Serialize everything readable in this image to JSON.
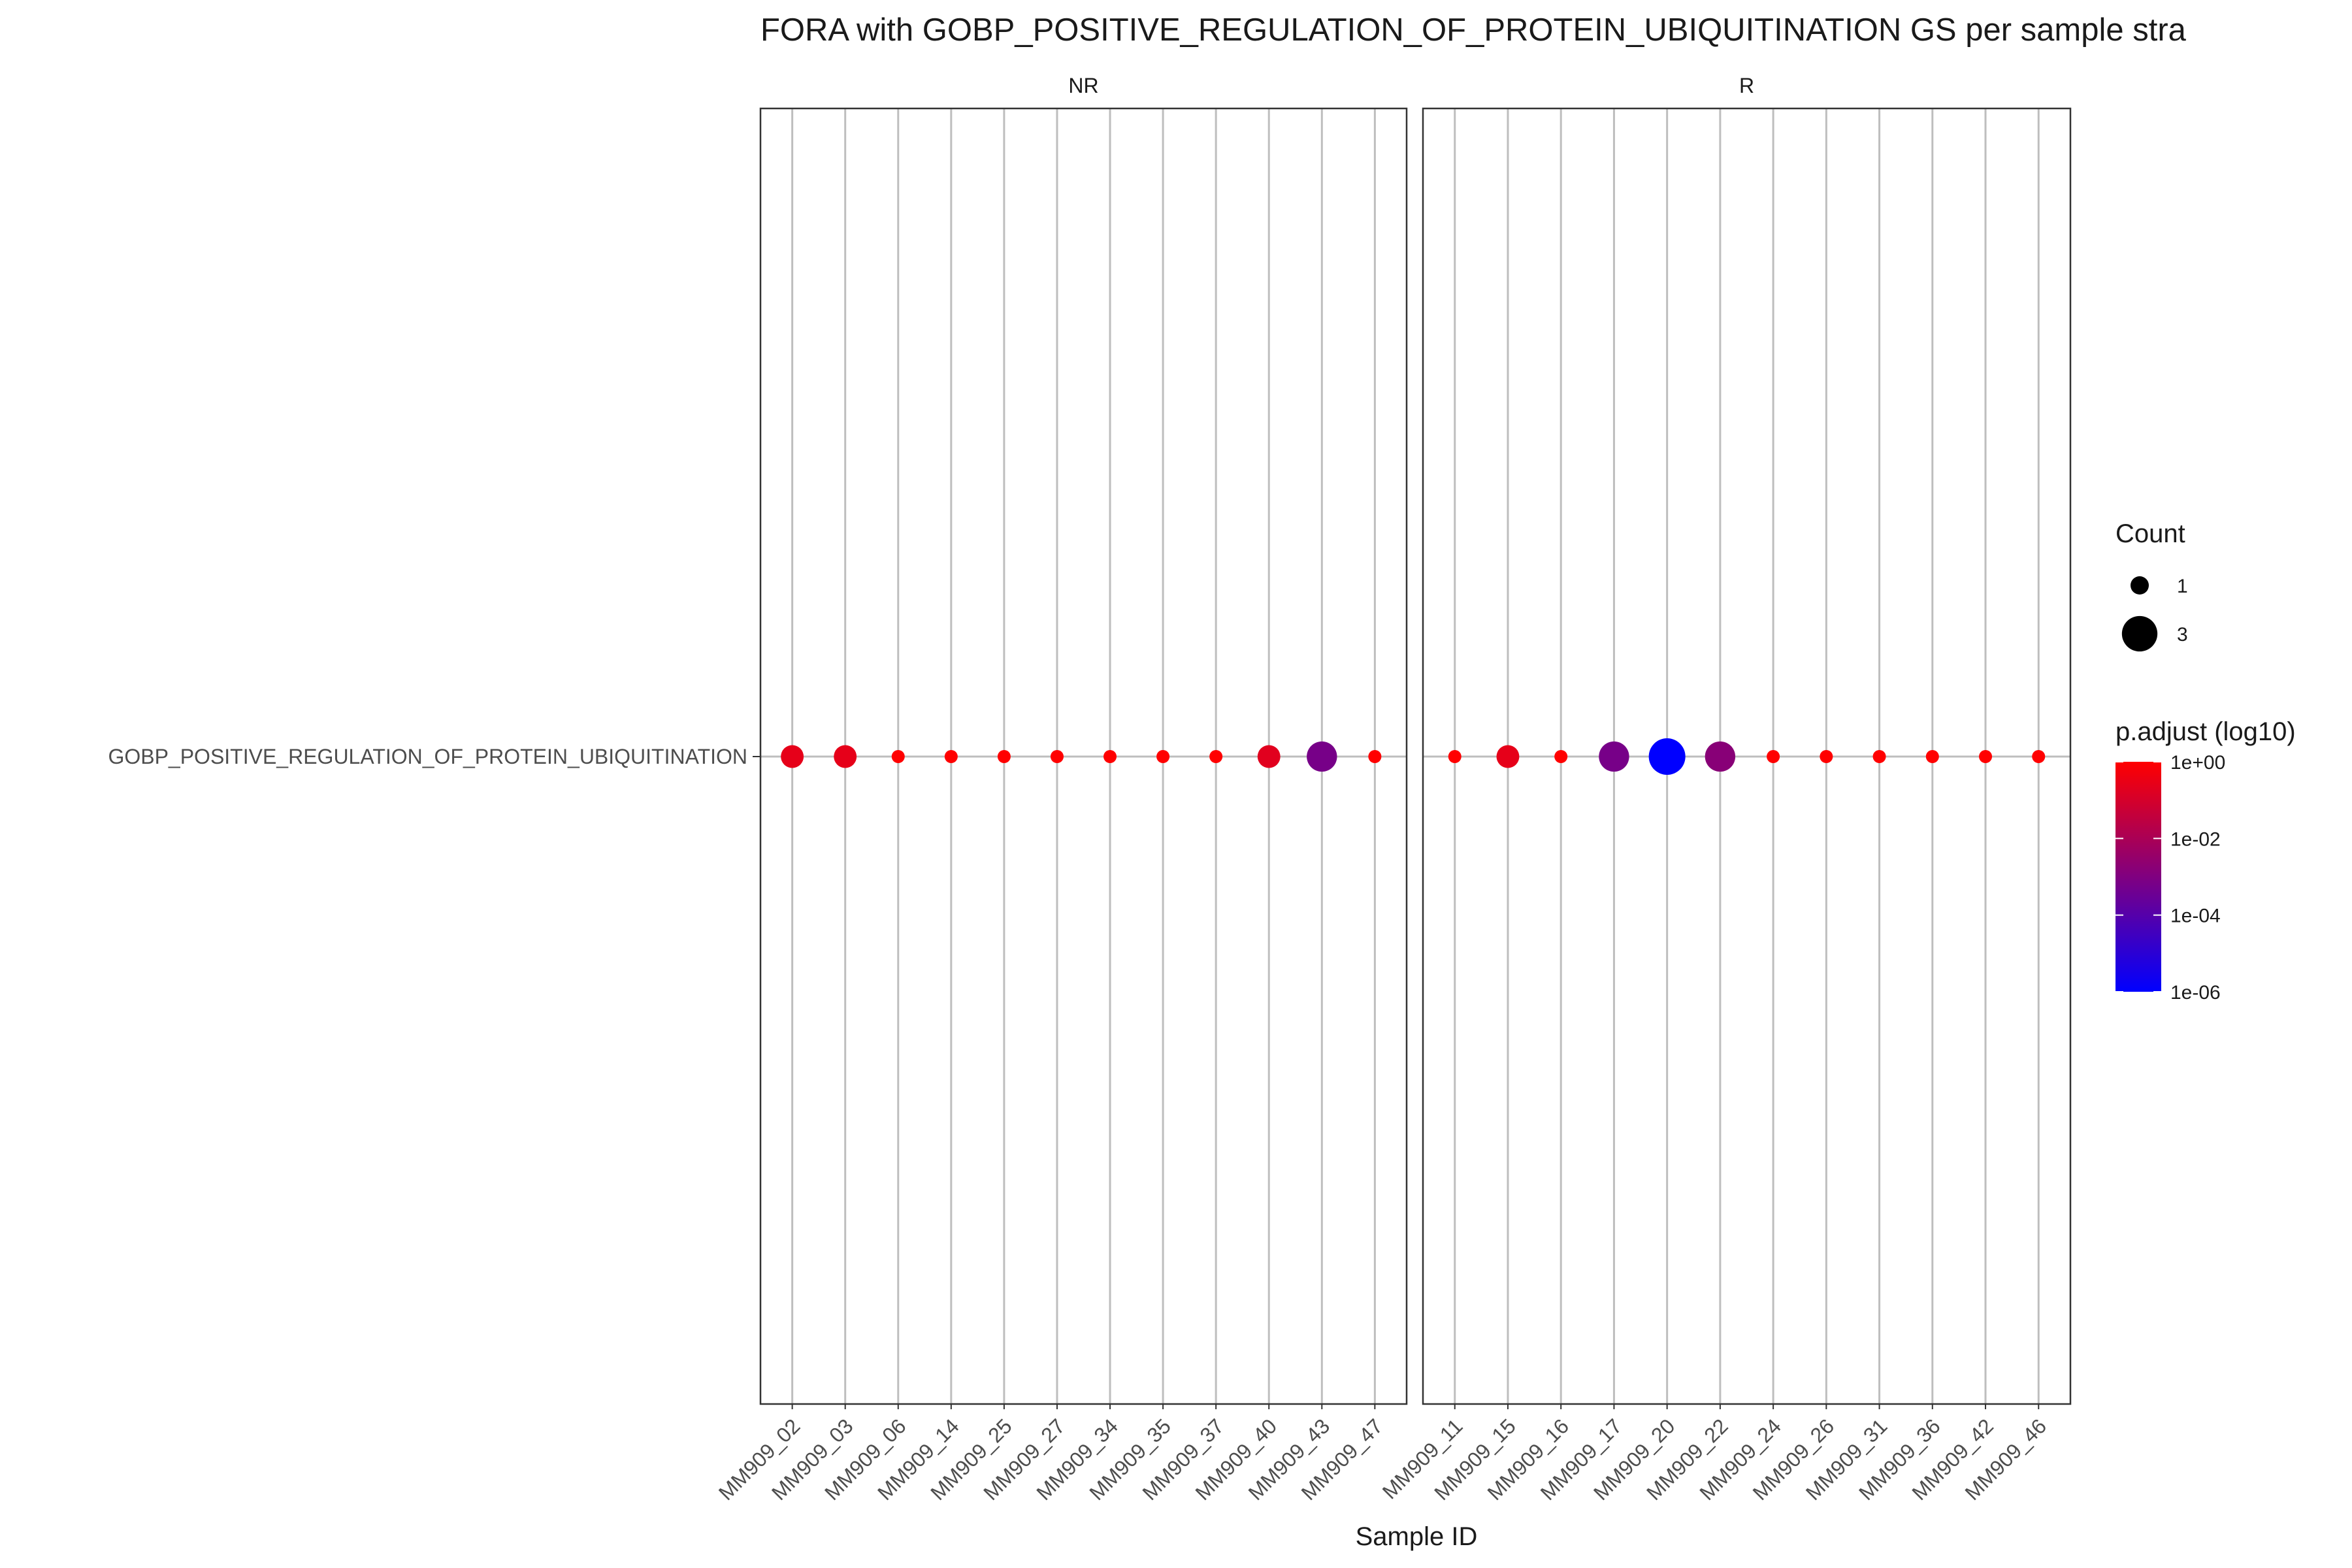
{
  "chart_data": {
    "type": "scatter",
    "title": "FORA with GOBP_POSITIVE_REGULATION_OF_PROTEIN_UBIQUITINATION GS per sample stra",
    "xlabel": "Sample ID",
    "ylabel": "",
    "y_categories": [
      "GOBP_POSITIVE_REGULATION_OF_PROTEIN_UBIQUITINATION"
    ],
    "grid": true,
    "legend_position": "right",
    "panels": [
      {
        "strip": "NR",
        "categories": [
          "MM909_02",
          "MM909_03",
          "MM909_06",
          "MM909_14",
          "MM909_25",
          "MM909_27",
          "MM909_34",
          "MM909_35",
          "MM909_37",
          "MM909_40",
          "MM909_43",
          "MM909_47"
        ],
        "count": [
          2,
          2,
          1,
          1,
          1,
          1,
          1,
          1,
          1,
          2,
          3,
          1
        ],
        "log10_p_adjust": [
          -0.6,
          -0.6,
          0,
          0,
          0,
          0,
          0,
          0,
          0,
          -0.7,
          -3.2,
          0
        ]
      },
      {
        "strip": "R",
        "categories": [
          "MM909_11",
          "MM909_15",
          "MM909_16",
          "MM909_17",
          "MM909_20",
          "MM909_22",
          "MM909_24",
          "MM909_26",
          "MM909_31",
          "MM909_36",
          "MM909_42",
          "MM909_46"
        ],
        "count": [
          1,
          2,
          1,
          3,
          4,
          3,
          1,
          1,
          1,
          1,
          1,
          1
        ],
        "log10_p_adjust": [
          0,
          -0.6,
          0,
          -3.2,
          -6.0,
          -2.8,
          0,
          0,
          0,
          0,
          0,
          0
        ]
      }
    ],
    "size_legend": {
      "title": "Count",
      "entries": [
        {
          "label": "1",
          "value": 1
        },
        {
          "label": "3",
          "value": 3
        }
      ]
    },
    "color_legend": {
      "title": "p.adjust (log10)",
      "scale": "log10",
      "range": [
        -6,
        0
      ],
      "ticks": [
        {
          "label": "1e+00",
          "value": 0
        },
        {
          "label": "1e-02",
          "value": -2
        },
        {
          "label": "1e-04",
          "value": -4
        },
        {
          "label": "1e-06",
          "value": -6
        }
      ],
      "colors": {
        "high": "#ff0000",
        "low": "#0000ff"
      }
    }
  }
}
